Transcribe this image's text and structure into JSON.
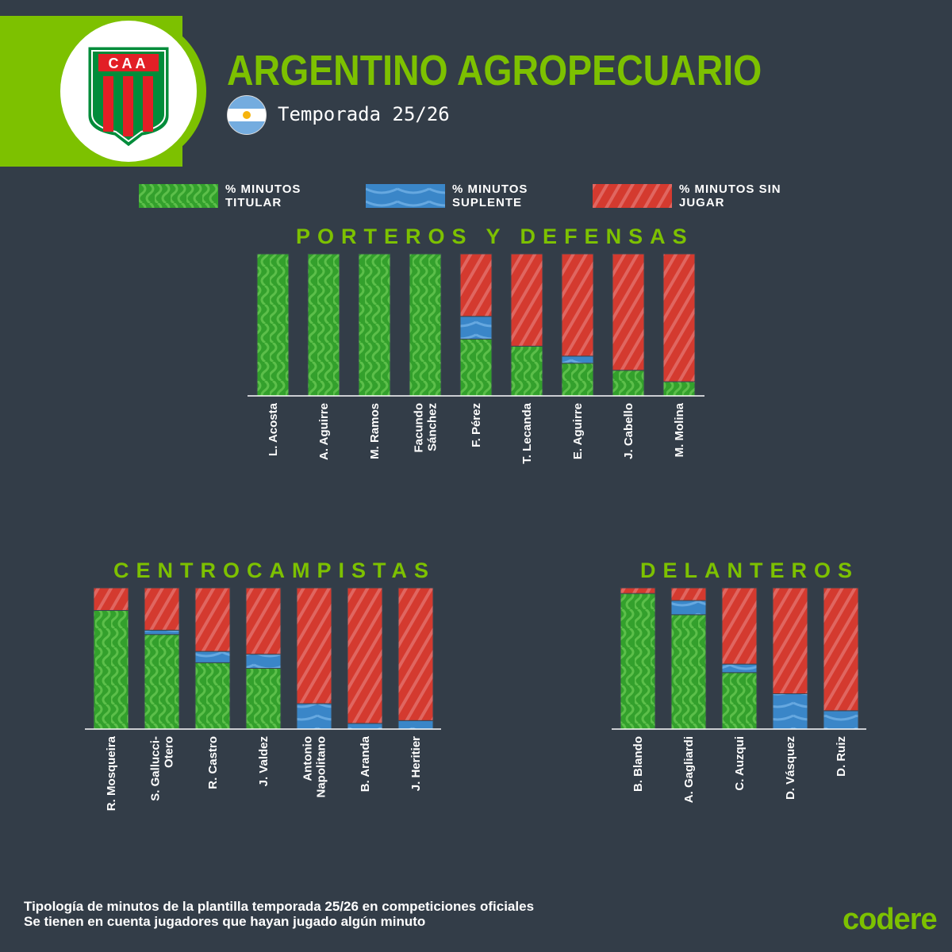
{
  "header": {
    "club_badge_text": "CAA",
    "title": "ARGENTINO AGROPECUARIO",
    "flag_icon": "argentina-flag-icon",
    "season": "Temporada 25/26"
  },
  "legend": [
    {
      "label": "% MINUTOS TITULAR",
      "color": "#33a02c"
    },
    {
      "label": "% MINUTOS SUPLENTE",
      "color": "#3a86c8"
    },
    {
      "label": "% MINUTOS SIN JUGAR",
      "color": "#d43a2f"
    }
  ],
  "chart_data": [
    {
      "type": "bar",
      "stacked": true,
      "title": "PORTEROS Y DEFENSAS",
      "ylim": [
        0,
        100
      ],
      "categories": [
        [
          "L. Acosta"
        ],
        [
          "A. Aguirre"
        ],
        [
          "M. Ramos"
        ],
        [
          "Facundo",
          "Sánchez"
        ],
        [
          "F. Pérez"
        ],
        [
          "T. Lecanda"
        ],
        [
          "E. Aguirre"
        ],
        [
          "J. Cabello"
        ],
        [
          "M. Molina"
        ]
      ],
      "series": [
        {
          "name": "% MINUTOS TITULAR",
          "values": [
            100,
            100,
            100,
            100,
            40,
            35,
            23,
            18,
            10
          ]
        },
        {
          "name": "% MINUTOS SUPLENTE",
          "values": [
            0,
            0,
            0,
            0,
            16,
            0,
            5,
            0,
            0
          ]
        },
        {
          "name": "% MINUTOS SIN JUGAR",
          "values": [
            0,
            0,
            0,
            0,
            44,
            65,
            72,
            82,
            90
          ]
        }
      ]
    },
    {
      "type": "bar",
      "stacked": true,
      "title": "CENTROCAMPISTAS",
      "ylim": [
        0,
        100
      ],
      "categories": [
        [
          "R. Mosqueira"
        ],
        [
          "S. Gallucci-",
          "Otero"
        ],
        [
          "R. Castro"
        ],
        [
          "J. Valdez"
        ],
        [
          "Antonio",
          "Napolitano"
        ],
        [
          "B. Aranda"
        ],
        [
          "J. Heritier"
        ]
      ],
      "series": [
        {
          "name": "% MINUTOS TITULAR",
          "values": [
            84,
            67,
            47,
            43,
            0,
            0,
            0
          ]
        },
        {
          "name": "% MINUTOS SUPLENTE",
          "values": [
            0,
            3,
            8,
            10,
            18,
            4,
            6
          ]
        },
        {
          "name": "% MINUTOS SIN JUGAR",
          "values": [
            16,
            30,
            45,
            47,
            82,
            96,
            94
          ]
        }
      ]
    },
    {
      "type": "bar",
      "stacked": true,
      "title": "DELANTEROS",
      "ylim": [
        0,
        100
      ],
      "categories": [
        [
          "B. Blando"
        ],
        [
          "A. Gagliardi"
        ],
        [
          "C. Auzqui"
        ],
        [
          "D. Vásquez"
        ],
        [
          "D. Ruiz"
        ]
      ],
      "series": [
        {
          "name": "% MINUTOS TITULAR",
          "values": [
            96,
            81,
            40,
            0,
            0
          ]
        },
        {
          "name": "% MINUTOS SUPLENTE",
          "values": [
            0,
            10,
            6,
            25,
            13
          ]
        },
        {
          "name": "% MINUTOS SIN JUGAR",
          "values": [
            4,
            9,
            54,
            75,
            87
          ]
        }
      ]
    }
  ],
  "footer": {
    "line1": "Tipología de minutos de la plantilla temporada 25/26 en competiciones oficiales",
    "line2": "Se tienen en cuenta jugadores que hayan jugado algún minuto",
    "brand": "codere"
  }
}
